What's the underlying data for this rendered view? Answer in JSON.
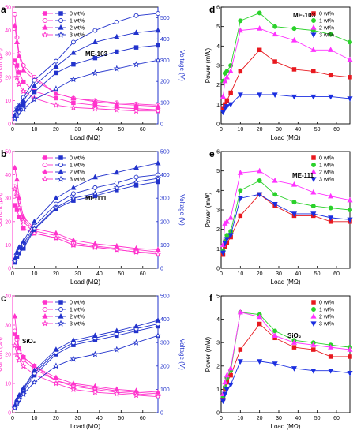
{
  "colors": {
    "wt0_right": "#e8191f",
    "wt1_right": "#2bd12b",
    "wt2_right": "#ff33ff",
    "wt3_right": "#1b2fe0",
    "current": "#ff33cc",
    "voltage": "#2233cc",
    "axis": "#000000"
  },
  "chart_data": [
    {
      "panel": "a",
      "type": "line",
      "annotation": "ME-103",
      "xlabel": "Load (MΩ)",
      "ylabel": "Current (μA)",
      "y2label": "Voltage (V)",
      "xlim": [
        0,
        67
      ],
      "ylim": [
        0,
        50
      ],
      "y2lim": [
        0,
        550
      ],
      "xticks": [
        0,
        10,
        20,
        30,
        40,
        50,
        60
      ],
      "yticks": [
        0,
        10,
        20,
        30,
        40,
        50
      ],
      "y2ticks": [
        0,
        100,
        200,
        300,
        400,
        500
      ],
      "legend": [
        "0 wt%",
        "1 wt%",
        "2 wt%",
        "3 wt%"
      ],
      "x": [
        1,
        2,
        3,
        5,
        10,
        20,
        28,
        38,
        48,
        57,
        67
      ],
      "series": [
        {
          "name": "0 wt%",
          "axis": "current",
          "marker": "square",
          "filled": true,
          "values": [
            27,
            25,
            22,
            18,
            14,
            11,
            9,
            8,
            7,
            6.5,
            6
          ]
        },
        {
          "name": "1 wt%",
          "axis": "current",
          "marker": "circle",
          "filled": false,
          "values": [
            47,
            37,
            30,
            25,
            20,
            13,
            11,
            10,
            9,
            8.5,
            8
          ]
        },
        {
          "name": "2 wt%",
          "axis": "current",
          "marker": "triangle",
          "filled": true,
          "values": [
            42,
            35,
            29,
            23,
            19,
            13,
            11,
            9.5,
            8.5,
            8,
            7.5
          ]
        },
        {
          "name": "3 wt%",
          "axis": "current",
          "marker": "star",
          "filled": false,
          "values": [
            26,
            20,
            17,
            14,
            11,
            8,
            7,
            6.5,
            6,
            5.5,
            5.5
          ]
        },
        {
          "name": "0 wt%",
          "axis": "voltage",
          "marker": "square",
          "filled": true,
          "values": [
            30,
            50,
            65,
            90,
            150,
            240,
            280,
            310,
            340,
            360,
            370
          ]
        },
        {
          "name": "1 wt%",
          "axis": "voltage",
          "marker": "circle",
          "filled": false,
          "values": [
            50,
            75,
            90,
            125,
            205,
            295,
            385,
            440,
            480,
            510,
            520
          ]
        },
        {
          "name": "2 wt%",
          "axis": "voltage",
          "marker": "triangle",
          "filled": true,
          "values": [
            40,
            70,
            85,
            110,
            180,
            270,
            335,
            385,
            410,
            430,
            440
          ]
        },
        {
          "name": "3 wt%",
          "axis": "voltage",
          "marker": "star",
          "filled": false,
          "values": [
            25,
            40,
            55,
            70,
            115,
            165,
            210,
            240,
            260,
            280,
            300
          ]
        }
      ]
    },
    {
      "panel": "b",
      "type": "line",
      "annotation": "ME-111",
      "xlabel": "Load (MΩ)",
      "ylabel": "Current (μA)",
      "y2label": "Voltage (V)",
      "xlim": [
        0,
        67
      ],
      "ylim": [
        0,
        50
      ],
      "y2lim": [
        0,
        500
      ],
      "xticks": [
        0,
        10,
        20,
        30,
        40,
        50,
        60
      ],
      "yticks": [
        0,
        10,
        20,
        30,
        40,
        50
      ],
      "y2ticks": [
        0,
        100,
        200,
        300,
        400,
        500
      ],
      "legend": [
        "0 wt%",
        "1 wt%",
        "2 wt%",
        "3 wt%"
      ],
      "x": [
        1,
        2,
        3,
        5,
        10,
        20,
        28,
        38,
        48,
        57,
        67
      ],
      "series": [
        {
          "name": "0 wt%",
          "axis": "current",
          "marker": "square",
          "filled": true,
          "values": [
            27,
            25,
            22,
            17,
            15,
            13,
            10,
            9,
            8,
            7,
            6.5
          ]
        },
        {
          "name": "1 wt%",
          "axis": "current",
          "marker": "circle",
          "filled": false,
          "values": [
            35,
            32,
            27,
            21,
            16,
            14,
            11,
            9.5,
            8.5,
            8,
            7
          ]
        },
        {
          "name": "2 wt%",
          "axis": "current",
          "marker": "triangle",
          "filled": true,
          "values": [
            43,
            38,
            30,
            22,
            17,
            15,
            12,
            10.5,
            9.5,
            8.5,
            8
          ]
        },
        {
          "name": "3 wt%",
          "axis": "current",
          "marker": "star",
          "filled": false,
          "values": [
            34,
            31,
            26,
            20,
            15,
            13,
            10,
            9,
            8,
            7,
            6
          ]
        },
        {
          "name": "0 wt%",
          "axis": "voltage",
          "marker": "square",
          "filled": true,
          "values": [
            25,
            50,
            65,
            85,
            165,
            255,
            290,
            310,
            335,
            355,
            370
          ]
        },
        {
          "name": "1 wt%",
          "axis": "voltage",
          "marker": "circle",
          "filled": false,
          "values": [
            35,
            60,
            80,
            105,
            180,
            275,
            320,
            345,
            365,
            390,
            400
          ]
        },
        {
          "name": "2 wt%",
          "axis": "voltage",
          "marker": "triangle",
          "filled": true,
          "values": [
            40,
            70,
            90,
            115,
            200,
            300,
            345,
            390,
            410,
            430,
            450
          ]
        },
        {
          "name": "3 wt%",
          "axis": "voltage",
          "marker": "star",
          "filled": false,
          "values": [
            30,
            55,
            75,
            95,
            170,
            260,
            300,
            320,
            345,
            370,
            385
          ]
        }
      ]
    },
    {
      "panel": "c",
      "type": "line",
      "annotation": "SiO₂",
      "xlabel": "Load (MΩ)",
      "ylabel": "Current (μA)",
      "y2label": "Voltage (V)",
      "xlim": [
        0,
        67
      ],
      "ylim": [
        0,
        40
      ],
      "y2lim": [
        0,
        500
      ],
      "xticks": [
        0,
        10,
        20,
        30,
        40,
        50,
        60
      ],
      "yticks": [
        0,
        10,
        20,
        30,
        40
      ],
      "y2ticks": [
        0,
        100,
        200,
        300,
        400,
        500
      ],
      "legend": [
        "0 wt%",
        "1 wt%",
        "2 wt%",
        "3 wt%"
      ],
      "x": [
        1,
        2,
        3,
        5,
        10,
        20,
        28,
        38,
        48,
        57,
        67
      ],
      "series": [
        {
          "name": "0 wt%",
          "axis": "current",
          "marker": "square",
          "filled": true,
          "values": [
            27,
            26,
            22,
            19,
            16,
            11,
            9,
            8,
            7,
            6.5,
            6
          ]
        },
        {
          "name": "1 wt%",
          "axis": "current",
          "marker": "circle",
          "filled": false,
          "values": [
            28,
            25,
            21,
            18,
            15,
            11,
            9.5,
            8.5,
            7.5,
            7,
            6.5
          ]
        },
        {
          "name": "2 wt%",
          "axis": "current",
          "marker": "triangle",
          "filled": true,
          "values": [
            33,
            26,
            22,
            19,
            16,
            12,
            10,
            9,
            8,
            7.5,
            7
          ]
        },
        {
          "name": "3 wt%",
          "axis": "current",
          "marker": "star",
          "filled": false,
          "values": [
            23,
            20,
            18,
            16,
            13,
            10,
            8,
            7,
            6.5,
            6,
            5.5
          ]
        },
        {
          "name": "0 wt%",
          "axis": "voltage",
          "marker": "square",
          "filled": true,
          "values": [
            20,
            45,
            65,
            90,
            160,
            250,
            290,
            310,
            330,
            350,
            370
          ]
        },
        {
          "name": "1 wt%",
          "axis": "voltage",
          "marker": "circle",
          "filled": false,
          "values": [
            25,
            50,
            70,
            100,
            170,
            260,
            300,
            320,
            340,
            360,
            380
          ]
        },
        {
          "name": "2 wt%",
          "axis": "voltage",
          "marker": "triangle",
          "filled": true,
          "values": [
            30,
            55,
            75,
            105,
            180,
            270,
            310,
            330,
            350,
            370,
            395
          ]
        },
        {
          "name": "3 wt%",
          "axis": "voltage",
          "marker": "star",
          "filled": false,
          "values": [
            20,
            40,
            55,
            80,
            130,
            200,
            230,
            250,
            270,
            300,
            330
          ]
        }
      ]
    },
    {
      "panel": "d",
      "type": "line",
      "annotation": "ME-103",
      "xlabel": "Load (MΩ)",
      "ylabel": "Power (mW)",
      "xlim": [
        0,
        67
      ],
      "ylim": [
        0,
        6
      ],
      "xticks": [
        0,
        10,
        20,
        30,
        40,
        50,
        60
      ],
      "yticks": [
        0,
        1,
        2,
        3,
        4,
        5,
        6
      ],
      "legend": [
        "0 wt%",
        "1 wt%",
        "2 wt%",
        "3 wt%"
      ],
      "x": [
        1,
        2,
        3,
        5,
        10,
        20,
        28,
        38,
        48,
        57,
        67
      ],
      "series": [
        {
          "name": "0 wt%",
          "marker": "square",
          "values": [
            0.8,
            1.0,
            1.2,
            1.6,
            2.7,
            3.8,
            3.2,
            2.8,
            2.7,
            2.5,
            2.4
          ]
        },
        {
          "name": "1 wt%",
          "marker": "circle",
          "values": [
            2.2,
            2.6,
            2.7,
            3.0,
            5.3,
            5.7,
            5.0,
            4.9,
            4.8,
            4.6,
            4.2
          ]
        },
        {
          "name": "2 wt%",
          "marker": "triangle",
          "values": [
            1.4,
            2.2,
            2.4,
            2.7,
            4.8,
            4.9,
            4.6,
            4.3,
            3.8,
            3.8,
            3.3
          ]
        },
        {
          "name": "3 wt%",
          "marker": "triangle-down",
          "values": [
            0.6,
            0.8,
            0.9,
            1.0,
            1.5,
            1.5,
            1.5,
            1.4,
            1.4,
            1.4,
            1.3
          ]
        }
      ]
    },
    {
      "panel": "e",
      "type": "line",
      "annotation": "ME-111",
      "xlabel": "Load (MΩ)",
      "ylabel": "Power (mW)",
      "xlim": [
        0,
        67
      ],
      "ylim": [
        0,
        6
      ],
      "xticks": [
        0,
        10,
        20,
        30,
        40,
        50,
        60
      ],
      "yticks": [
        0,
        1,
        2,
        3,
        4,
        5,
        6
      ],
      "legend": [
        "0 wt%",
        "1 wt%",
        "2 wt%",
        "3 wt%"
      ],
      "x": [
        1,
        2,
        3,
        5,
        10,
        20,
        28,
        38,
        48,
        57,
        67
      ],
      "series": [
        {
          "name": "0 wt%",
          "marker": "square",
          "values": [
            0.7,
            1.1,
            1.3,
            1.6,
            2.7,
            3.8,
            3.2,
            2.7,
            2.7,
            2.4,
            2.4
          ]
        },
        {
          "name": "1 wt%",
          "marker": "circle",
          "values": [
            0.9,
            1.4,
            1.7,
            1.9,
            4.0,
            4.5,
            3.8,
            3.4,
            3.2,
            3.1,
            3.0
          ]
        },
        {
          "name": "2 wt%",
          "marker": "triangle",
          "values": [
            1.2,
            2.3,
            2.4,
            2.6,
            4.9,
            5.0,
            4.5,
            4.3,
            3.9,
            3.7,
            3.5
          ]
        },
        {
          "name": "3 wt%",
          "marker": "triangle-down",
          "values": [
            0.8,
            1.3,
            1.5,
            1.7,
            3.6,
            3.8,
            3.3,
            2.8,
            2.8,
            2.6,
            2.5
          ]
        }
      ]
    },
    {
      "panel": "f",
      "type": "line",
      "annotation": "SiO₂",
      "xlabel": "Load (MΩ)",
      "ylabel": "Power (mW)",
      "xlim": [
        0,
        67
      ],
      "ylim": [
        0,
        5
      ],
      "xticks": [
        0,
        10,
        20,
        30,
        40,
        50,
        60
      ],
      "yticks": [
        0,
        1,
        2,
        3,
        4,
        5
      ],
      "legend": [
        "0 wt%",
        "1 wt%",
        "2 wt%",
        "3 wt%"
      ],
      "x": [
        1,
        2,
        3,
        5,
        10,
        20,
        28,
        38,
        48,
        57,
        67
      ],
      "series": [
        {
          "name": "0 wt%",
          "marker": "square",
          "values": [
            0.6,
            1.0,
            1.3,
            1.6,
            2.7,
            3.8,
            3.2,
            2.8,
            2.7,
            2.4,
            2.4
          ]
        },
        {
          "name": "1 wt%",
          "marker": "circle",
          "values": [
            0.7,
            1.1,
            1.5,
            1.8,
            4.3,
            4.2,
            3.5,
            3.1,
            3.0,
            2.9,
            2.8
          ]
        },
        {
          "name": "2 wt%",
          "marker": "triangle",
          "values": [
            0.8,
            1.3,
            1.6,
            1.9,
            4.3,
            4.1,
            3.3,
            3.0,
            2.9,
            2.8,
            2.7
          ]
        },
        {
          "name": "3 wt%",
          "marker": "triangle-down",
          "values": [
            0.5,
            0.8,
            1.0,
            1.2,
            2.2,
            2.2,
            2.1,
            1.9,
            1.8,
            1.8,
            1.7
          ]
        }
      ]
    }
  ]
}
